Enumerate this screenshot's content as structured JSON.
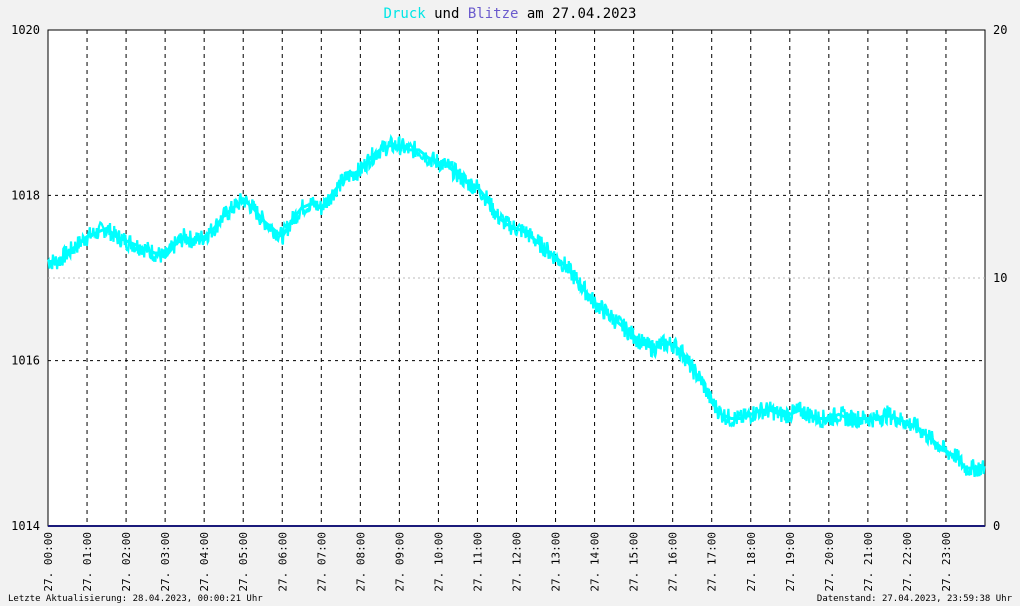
{
  "title": {
    "part1": "Druck",
    "part2": " und ",
    "part3": "Blitze",
    "part4": " am 27.04.2023",
    "color1": "#00e6e6",
    "color3": "#6a5acd"
  },
  "footer": {
    "left": "Letzte Aktualisierung: 28.04.2023, 00:00:21 Uhr",
    "right": "Datenstand: 27.04.2023, 23:59:38 Uhr"
  },
  "chart_data": {
    "type": "line",
    "title": "Druck und Blitze am 27.04.2023",
    "grid": true,
    "x_ticks": [
      "27. 00:00",
      "27. 01:00",
      "27. 02:00",
      "27. 03:00",
      "27. 04:00",
      "27. 05:00",
      "27. 06:00",
      "27. 07:00",
      "27. 08:00",
      "27. 09:00",
      "27. 10:00",
      "27. 11:00",
      "27. 12:00",
      "27. 13:00",
      "27. 14:00",
      "27. 15:00",
      "27. 16:00",
      "27. 17:00",
      "27. 18:00",
      "27. 19:00",
      "27. 20:00",
      "27. 21:00",
      "27. 22:00",
      "27. 23:00"
    ],
    "xlim_hours": [
      0,
      24
    ],
    "y_left": {
      "ylim": [
        1014,
        1020
      ],
      "ticks": [
        "1014",
        "1016",
        "1018",
        "1020"
      ]
    },
    "y_right": {
      "ylim": [
        0,
        20
      ],
      "ticks": [
        "0",
        "10",
        "20"
      ]
    },
    "series": [
      {
        "name": "Druck",
        "axis": "left",
        "color": "#00ffff",
        "x": [
          0,
          0.25,
          0.5,
          0.75,
          1,
          1.25,
          1.5,
          1.75,
          2,
          2.25,
          2.5,
          2.75,
          3,
          3.25,
          3.5,
          3.75,
          4,
          4.25,
          4.5,
          4.75,
          5,
          5.25,
          5.5,
          5.75,
          6,
          6.25,
          6.5,
          6.75,
          7,
          7.25,
          7.5,
          7.75,
          8,
          8.25,
          8.5,
          8.75,
          9,
          9.25,
          9.5,
          9.75,
          10,
          10.25,
          10.5,
          10.75,
          11,
          11.25,
          11.5,
          11.75,
          12,
          12.25,
          12.5,
          12.75,
          13,
          13.25,
          13.5,
          13.75,
          14,
          14.25,
          14.5,
          14.75,
          15,
          15.25,
          15.5,
          15.75,
          16,
          16.25,
          16.5,
          16.75,
          17,
          17.25,
          17.5,
          17.75,
          18,
          18.25,
          18.5,
          18.75,
          19,
          19.25,
          19.5,
          19.75,
          20,
          20.25,
          20.5,
          20.75,
          21,
          21.25,
          21.5,
          21.75,
          22,
          22.25,
          22.5,
          22.75,
          23,
          23.25,
          23.5,
          23.75,
          24
        ],
        "values": [
          1017.2,
          1017.2,
          1017.3,
          1017.4,
          1017.5,
          1017.55,
          1017.6,
          1017.5,
          1017.45,
          1017.4,
          1017.35,
          1017.3,
          1017.25,
          1017.4,
          1017.5,
          1017.45,
          1017.5,
          1017.6,
          1017.75,
          1017.85,
          1017.95,
          1017.85,
          1017.7,
          1017.6,
          1017.5,
          1017.7,
          1017.85,
          1017.9,
          1017.85,
          1018.0,
          1018.15,
          1018.25,
          1018.3,
          1018.45,
          1018.55,
          1018.6,
          1018.6,
          1018.55,
          1018.55,
          1018.45,
          1018.4,
          1018.35,
          1018.25,
          1018.15,
          1018.1,
          1017.95,
          1017.75,
          1017.65,
          1017.6,
          1017.55,
          1017.45,
          1017.35,
          1017.25,
          1017.15,
          1017.0,
          1016.85,
          1016.7,
          1016.6,
          1016.5,
          1016.4,
          1016.3,
          1016.2,
          1016.15,
          1016.2,
          1016.2,
          1016.1,
          1015.9,
          1015.75,
          1015.5,
          1015.35,
          1015.3,
          1015.3,
          1015.35,
          1015.4,
          1015.4,
          1015.35,
          1015.35,
          1015.4,
          1015.35,
          1015.3,
          1015.3,
          1015.35,
          1015.3,
          1015.3,
          1015.3,
          1015.3,
          1015.35,
          1015.3,
          1015.25,
          1015.2,
          1015.1,
          1015.0,
          1014.9,
          1014.85,
          1014.7,
          1014.7,
          1014.7
        ]
      },
      {
        "name": "Blitze",
        "axis": "right",
        "color": "#1a1a7a",
        "x": [
          0,
          24
        ],
        "values": [
          0,
          0
        ]
      }
    ]
  }
}
